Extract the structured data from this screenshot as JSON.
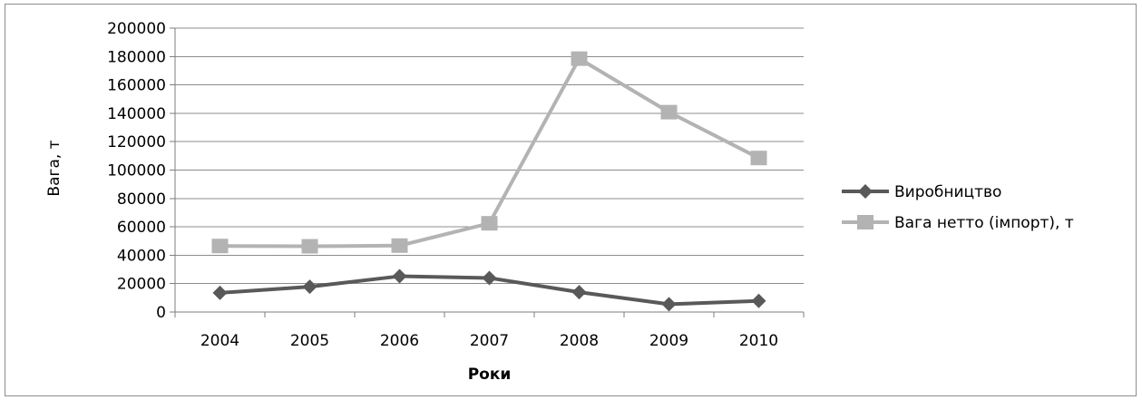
{
  "chart_data": {
    "type": "line",
    "title": "",
    "xlabel": "Роки",
    "ylabel": "Вага, т",
    "categories": [
      "2004",
      "2005",
      "2006",
      "2007",
      "2008",
      "2009",
      "2010"
    ],
    "ylim": [
      0,
      200000
    ],
    "yticks": [
      "0",
      "20000",
      "40000",
      "60000",
      "80000",
      "100000",
      "120000",
      "140000",
      "160000",
      "180000",
      "200000"
    ],
    "grid": true,
    "legend_position": "right",
    "series": [
      {
        "name": "Виробництво",
        "color": "#595959",
        "marker": "diamond",
        "values": [
          13500,
          17800,
          25200,
          24000,
          14000,
          5500,
          7800
        ]
      },
      {
        "name": "Вага нетто (імпорт), т",
        "color": "#b3b3b3",
        "marker": "square",
        "values": [
          46500,
          46300,
          46800,
          62500,
          178500,
          140800,
          108500
        ]
      }
    ]
  }
}
